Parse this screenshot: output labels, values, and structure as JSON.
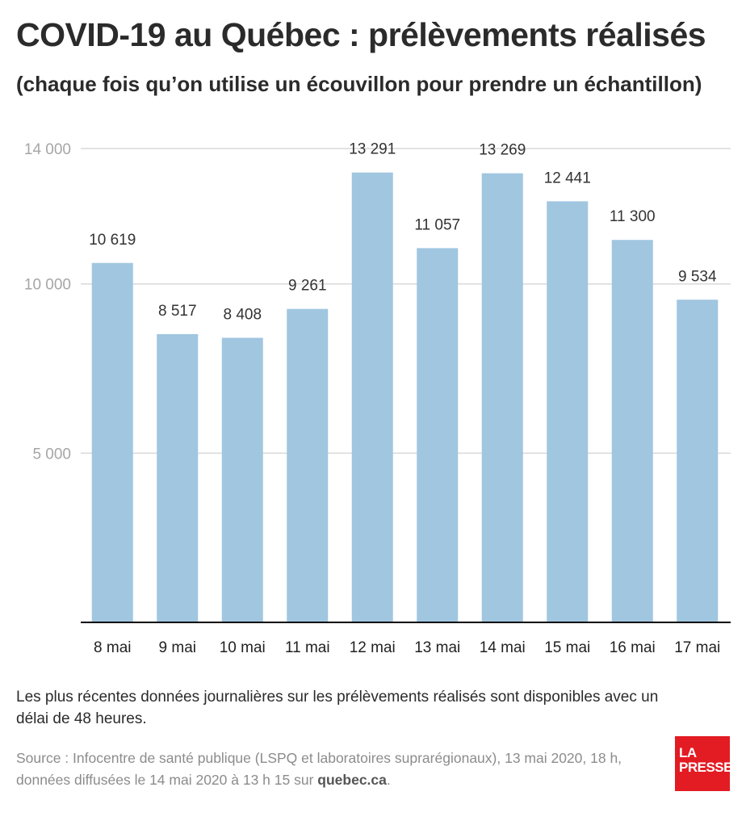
{
  "title": "COVID-19 au Québec : prélèvements réalisés",
  "subtitle": "(chaque fois qu’on utilise un écouvillon pour prendre un échantillon)",
  "note": "Les plus récentes données journalières sur les prélèvements réalisés sont disponibles avec un délai de 48 heures.",
  "source": {
    "text": "Source : Infocentre de santé publique (LSPQ et laboratoires suprarégionaux), 13 mai 2020, 18 h, données diffusées le 14 mai 2020 à 13 h 15 sur ",
    "link": "quebec.ca",
    "end": "."
  },
  "logo": {
    "line1": "LA",
    "line2": "PRESSE"
  },
  "colors": {
    "bar": "#a0c6e0",
    "grid": "#d9d9d9",
    "axis": "#000000",
    "logo": "#e31b23"
  },
  "chart_data": {
    "type": "bar",
    "categories": [
      "8 mai",
      "9 mai",
      "10 mai",
      "11 mai",
      "12 mai",
      "13 mai",
      "14 mai",
      "15 mai",
      "16 mai",
      "17 mai"
    ],
    "values": [
      10619,
      8517,
      8408,
      9261,
      13291,
      11057,
      13269,
      12441,
      11300,
      9534
    ],
    "value_labels": [
      "10 619",
      "8 517",
      "8 408",
      "9 261",
      "13 291",
      "11 057",
      "13 269",
      "12 441",
      "11 300",
      "9 534"
    ],
    "yticks": [
      5000,
      10000,
      14000
    ],
    "ytick_labels": [
      "5 000",
      "10 000",
      "14 000"
    ],
    "ylim": [
      0,
      14000
    ],
    "grid": true,
    "legend": "none"
  }
}
